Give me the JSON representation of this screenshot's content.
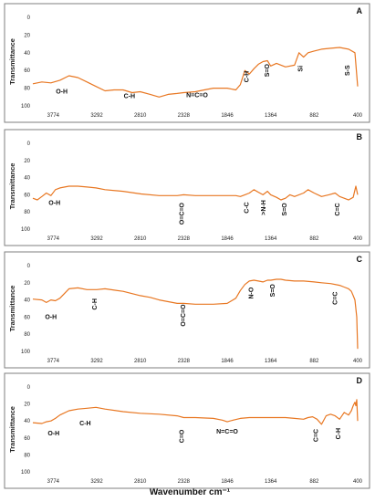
{
  "figure": {
    "xlabel": "Wavenumber cm⁻¹",
    "series_color": "#E87722"
  },
  "chart_data": [
    {
      "panel": "A",
      "type": "line",
      "ylabel": "Transmittance",
      "x_ticks": [
        3774,
        3292,
        2810,
        2328,
        1846,
        1364,
        882,
        400
      ],
      "y_ticks": [
        0,
        20,
        40,
        60,
        80,
        100
      ],
      "xlim": [
        4000,
        400
      ],
      "ylim": [
        0,
        100
      ],
      "x": [
        4000,
        3900,
        3800,
        3700,
        3600,
        3500,
        3400,
        3300,
        3200,
        3100,
        3000,
        2900,
        2810,
        2700,
        2600,
        2500,
        2400,
        2328,
        2200,
        2100,
        2000,
        1846,
        1750,
        1700,
        1650,
        1600,
        1550,
        1500,
        1450,
        1400,
        1364,
        1300,
        1200,
        1100,
        1050,
        1000,
        950,
        882,
        800,
        700,
        600,
        500,
        430,
        400
      ],
      "y": [
        75,
        73,
        74,
        71,
        66,
        68,
        73,
        78,
        83,
        82,
        82,
        85,
        84,
        87,
        90,
        87,
        86,
        85,
        84,
        82,
        80,
        80,
        82,
        76,
        60,
        64,
        58,
        53,
        50,
        49,
        55,
        52,
        56,
        54,
        40,
        45,
        40,
        38,
        36,
        35,
        34,
        36,
        40,
        78
      ],
      "annotations": [
        {
          "label": "O-H",
          "x": 3680,
          "y": 86
        },
        {
          "label": "C-H",
          "x": 2930,
          "y": 91
        },
        {
          "label": "N=C=O",
          "x": 2180,
          "y": 90
        },
        {
          "label": "C-H",
          "x": 1610,
          "y": 67,
          "rotate": -90
        },
        {
          "label": "S=O",
          "x": 1380,
          "y": 60,
          "rotate": -90
        },
        {
          "label": "Si",
          "x": 1010,
          "y": 58,
          "rotate": -90
        },
        {
          "label": "S-S",
          "x": 490,
          "y": 60,
          "rotate": -90
        }
      ]
    },
    {
      "panel": "B",
      "type": "line",
      "ylabel": "Transmittance",
      "x_ticks": [
        3774,
        3292,
        2810,
        2328,
        1846,
        1364,
        882,
        400
      ],
      "y_ticks": [
        0,
        20,
        40,
        60,
        80,
        100
      ],
      "xlim": [
        4000,
        400
      ],
      "ylim": [
        0,
        100
      ],
      "x": [
        4000,
        3950,
        3900,
        3850,
        3800,
        3750,
        3700,
        3600,
        3500,
        3400,
        3300,
        3200,
        3000,
        2800,
        2600,
        2400,
        2328,
        2200,
        2000,
        1846,
        1750,
        1700,
        1650,
        1600,
        1550,
        1500,
        1450,
        1400,
        1364,
        1300,
        1250,
        1200,
        1150,
        1100,
        1000,
        950,
        882,
        800,
        720,
        650,
        600,
        550,
        500,
        450,
        420,
        400
      ],
      "y": [
        64,
        66,
        62,
        58,
        61,
        54,
        52,
        50,
        50,
        51,
        52,
        54,
        56,
        59,
        61,
        61,
        60,
        61,
        61,
        61,
        61,
        62,
        60,
        58,
        54,
        57,
        60,
        56,
        60,
        63,
        66,
        64,
        60,
        62,
        58,
        54,
        58,
        62,
        60,
        58,
        62,
        64,
        66,
        63,
        50,
        60
      ],
      "annotations": [
        {
          "label": "O-H",
          "x": 3760,
          "y": 72
        },
        {
          "label": "O=C=O",
          "x": 2328,
          "y": 82,
          "rotate": -90
        },
        {
          "label": "C-C",
          "x": 1610,
          "y": 75,
          "rotate": -90
        },
        {
          "label": ">N-H",
          "x": 1420,
          "y": 75,
          "rotate": -90
        },
        {
          "label": "S=O",
          "x": 1190,
          "y": 77,
          "rotate": -90
        },
        {
          "label": "C=C",
          "x": 600,
          "y": 77,
          "rotate": -90
        }
      ]
    },
    {
      "panel": "C",
      "type": "line",
      "ylabel": "Transmittance",
      "x_ticks": [
        3774,
        3292,
        2810,
        2328,
        1846,
        1364,
        882,
        400
      ],
      "y_ticks": [
        0,
        20,
        40,
        60,
        80,
        100
      ],
      "xlim": [
        4000,
        400
      ],
      "ylim": [
        0,
        100
      ],
      "x": [
        4000,
        3900,
        3850,
        3800,
        3750,
        3700,
        3600,
        3500,
        3400,
        3292,
        3200,
        3000,
        2810,
        2700,
        2600,
        2500,
        2400,
        2328,
        2200,
        2000,
        1846,
        1750,
        1700,
        1650,
        1600,
        1550,
        1500,
        1450,
        1400,
        1364,
        1300,
        1250,
        1200,
        1100,
        1000,
        882,
        800,
        700,
        600,
        550,
        500,
        470,
        450,
        430,
        410,
        400
      ],
      "y": [
        39,
        40,
        43,
        40,
        41,
        38,
        27,
        26,
        28,
        28,
        27,
        30,
        35,
        37,
        40,
        42,
        44,
        44,
        45,
        45,
        44,
        38,
        29,
        22,
        18,
        17,
        18,
        19,
        17,
        17,
        16,
        16,
        17,
        18,
        18,
        19,
        20,
        21,
        23,
        25,
        27,
        30,
        35,
        40,
        60,
        97
      ],
      "annotations": [
        {
          "label": "O-H",
          "x": 3800,
          "y": 62
        },
        {
          "label": "C-H",
          "x": 3292,
          "y": 45,
          "rotate": -90
        },
        {
          "label": "O=C=O",
          "x": 2310,
          "y": 58,
          "rotate": -90
        },
        {
          "label": "N-O",
          "x": 1560,
          "y": 32,
          "rotate": -90
        },
        {
          "label": "S=O",
          "x": 1320,
          "y": 29,
          "rotate": -90
        },
        {
          "label": "C=C",
          "x": 630,
          "y": 38,
          "rotate": -90
        }
      ]
    },
    {
      "panel": "D",
      "type": "line",
      "ylabel": "Transmittance",
      "x_ticks": [
        3774,
        3292,
        2810,
        2328,
        1846,
        1364,
        882,
        400
      ],
      "y_ticks": [
        0,
        20,
        40,
        60,
        80,
        100
      ],
      "xlim": [
        4000,
        400
      ],
      "ylim": [
        0,
        100
      ],
      "x": [
        4000,
        3900,
        3850,
        3800,
        3750,
        3700,
        3600,
        3500,
        3400,
        3300,
        3200,
        3000,
        2810,
        2600,
        2400,
        2328,
        2200,
        2000,
        1900,
        1846,
        1780,
        1700,
        1600,
        1500,
        1364,
        1200,
        1100,
        1000,
        950,
        900,
        850,
        800,
        750,
        700,
        650,
        600,
        550,
        500,
        470,
        450,
        430,
        420,
        410,
        400
      ],
      "y": [
        42,
        43,
        41,
        40,
        37,
        33,
        28,
        26,
        25,
        24,
        26,
        29,
        31,
        32,
        34,
        36,
        36,
        37,
        39,
        41,
        39,
        37,
        36,
        36,
        36,
        36,
        37,
        38,
        36,
        35,
        38,
        44,
        34,
        32,
        34,
        38,
        30,
        33,
        28,
        22,
        18,
        22,
        15,
        40
      ],
      "annotations": [
        {
          "label": "O-H",
          "x": 3770,
          "y": 57
        },
        {
          "label": "C-H",
          "x": 3420,
          "y": 45
        },
        {
          "label": "C=O",
          "x": 2328,
          "y": 58,
          "rotate": -90
        },
        {
          "label": "N=C=O",
          "x": 1846,
          "y": 55
        },
        {
          "label": "C=C",
          "x": 840,
          "y": 57,
          "rotate": -90
        },
        {
          "label": "C-H",
          "x": 590,
          "y": 55,
          "rotate": -90
        }
      ]
    }
  ]
}
